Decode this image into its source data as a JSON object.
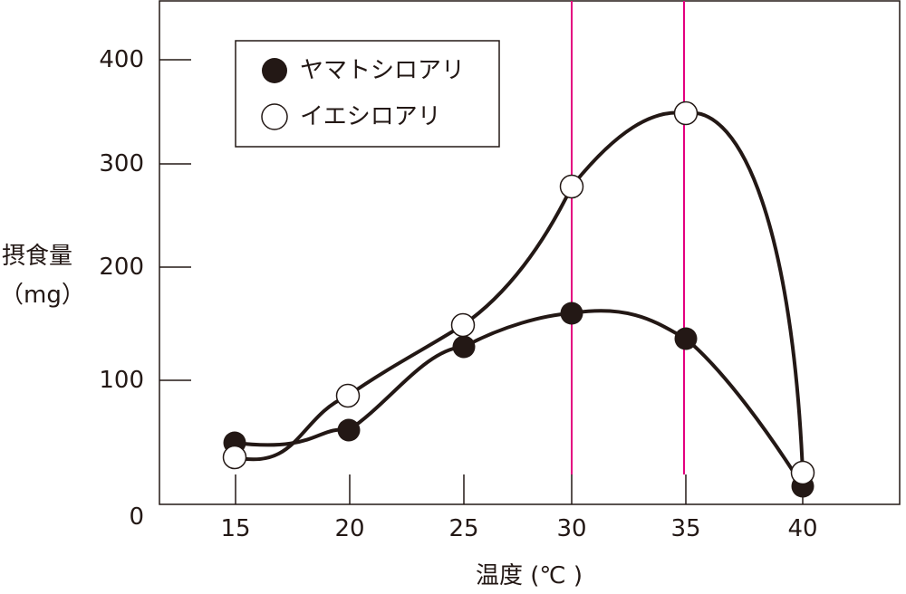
{
  "chart_data": {
    "type": "line",
    "title": "",
    "xlabel": "温度 (℃ )",
    "ylabel_line1": "摂食量",
    "ylabel_line2": "（mg）",
    "x_ticks": [
      "15",
      "20",
      "25",
      "30",
      "35",
      "40"
    ],
    "y_ticks": [
      "0",
      "100",
      "200",
      "300",
      "400"
    ],
    "xlim": [
      11.7,
      44.3
    ],
    "ylim": [
      -10,
      450
    ],
    "grid": false,
    "legend_position": "top-left",
    "reference_lines_x": [
      30,
      35
    ],
    "reference_line_color": "#e4007f",
    "series": [
      {
        "name": "ヤマトシロアリ",
        "marker": "filled-circle",
        "x": [
          15,
          20,
          25,
          30,
          35,
          40
        ],
        "values": [
          45,
          55,
          128,
          160,
          137,
          7
        ]
      },
      {
        "name": "イエシロアリ",
        "marker": "open-circle",
        "x": [
          15,
          20,
          25,
          30,
          35,
          40
        ],
        "values": [
          33,
          86,
          149,
          277,
          346,
          20
        ]
      }
    ]
  }
}
